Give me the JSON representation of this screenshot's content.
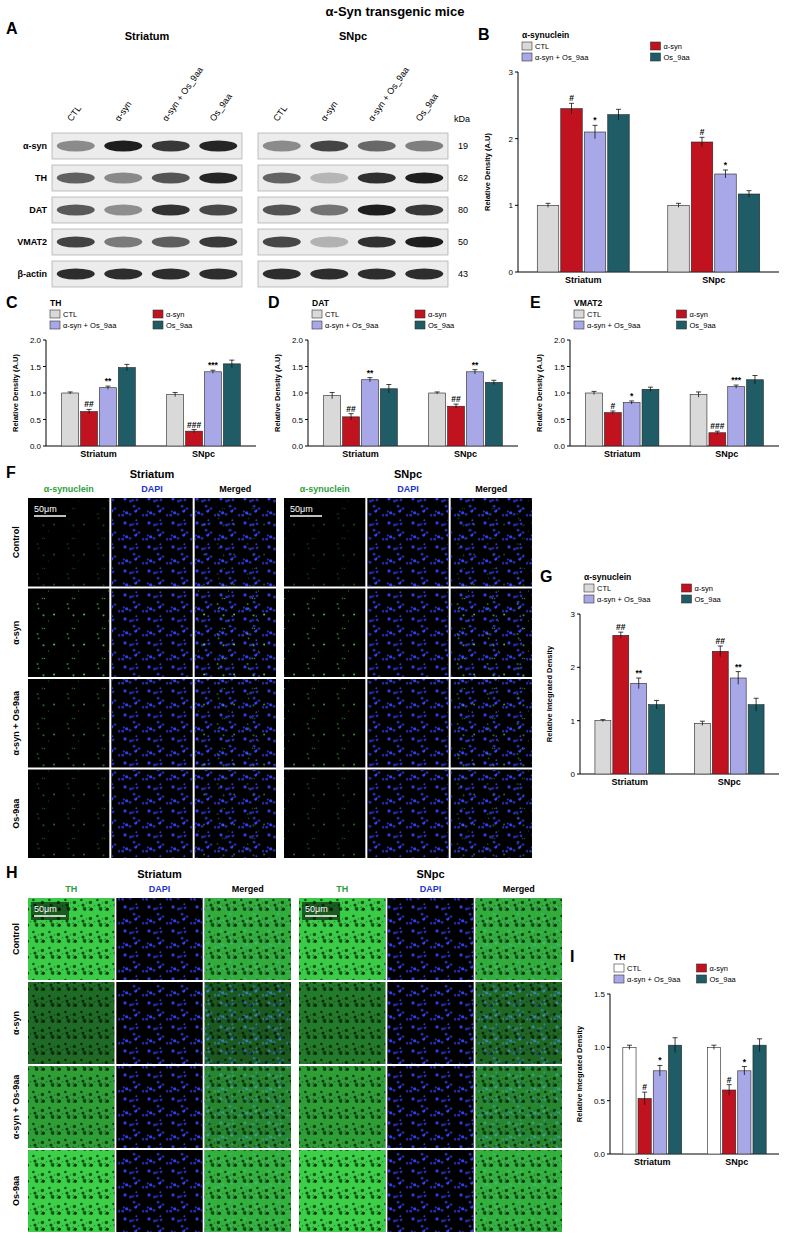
{
  "title": "α-Syn transgenic mice",
  "blot": {
    "panel": "A",
    "regions": [
      "Striatum",
      "SNpc"
    ],
    "lanes": [
      "CTL",
      "α-syn",
      "α-syn + Os_9aa",
      "Os_9aa"
    ],
    "kda_label": "kDa",
    "rows": [
      {
        "label": "α-syn",
        "kda": 19
      },
      {
        "label": "TH",
        "kda": 62
      },
      {
        "label": "DAT",
        "kda": 80
      },
      {
        "label": "VMAT2",
        "kda": 50
      },
      {
        "label": "β-actin",
        "kda": 43
      }
    ]
  },
  "images": [
    {
      "panel": "F",
      "regions": [
        "Striatum",
        "SNpc"
      ],
      "channels": [
        "α-synuclein",
        "DAPI",
        "Merged"
      ],
      "rows": [
        "Control",
        "α-syn",
        "α-syn + Os-9aa",
        "Os-9aa"
      ],
      "scale_bar": "50μm"
    },
    {
      "panel": "H",
      "regions": [
        "Striatum",
        "SNpc"
      ],
      "channels": [
        "TH",
        "DAPI",
        "Merged"
      ],
      "rows": [
        "Control",
        "α-syn",
        "α-syn + Os-9aa",
        "Os-9aa"
      ],
      "scale_bar": "50μm"
    }
  ],
  "chart_data": [
    {
      "panel": "B",
      "type": "bar",
      "title": "α-synuclein",
      "y_label": "Relative Density (A.U)",
      "categories": [
        "Striatum",
        "SNpc"
      ],
      "ylim": [
        0,
        3
      ],
      "yticks": [
        0,
        1,
        2,
        3
      ],
      "legend": "top",
      "series": [
        {
          "name": "CTL",
          "color": "#d9d9d9",
          "values": [
            1.0,
            1.0
          ],
          "errors": [
            0.03,
            0.03
          ]
        },
        {
          "name": "α-syn",
          "color": "#c1121f",
          "values": [
            2.45,
            1.95
          ],
          "errors": [
            0.08,
            0.07
          ],
          "sig": [
            "#",
            "#"
          ]
        },
        {
          "name": "α-syn + Os_9aa",
          "color": "#a8a8e8",
          "values": [
            2.1,
            1.47
          ],
          "errors": [
            0.1,
            0.06
          ],
          "sig": [
            "*",
            "*"
          ]
        },
        {
          "name": "Os_9aa",
          "color": "#1f5c66",
          "values": [
            2.36,
            1.17
          ],
          "errors": [
            0.08,
            0.05
          ]
        }
      ]
    },
    {
      "panel": "C",
      "type": "bar",
      "title": "TH",
      "y_label": "Relative Density (A.U)",
      "categories": [
        "Striatum",
        "SNpc"
      ],
      "ylim": [
        0,
        2
      ],
      "yticks": [
        {
          "value": 0,
          "label": "0.0"
        },
        {
          "value": 0.5,
          "label": "0.5"
        },
        {
          "value": 1,
          "label": "1.0"
        },
        {
          "value": 1.5,
          "label": "1.5"
        },
        {
          "value": 2,
          "label": "2.0"
        }
      ],
      "legend": "top",
      "series": [
        {
          "name": "CTL",
          "color": "#d9d9d9",
          "values": [
            1.0,
            0.97
          ],
          "errors": [
            0.02,
            0.04
          ]
        },
        {
          "name": "α-syn",
          "color": "#c1121f",
          "values": [
            0.65,
            0.28
          ],
          "errors": [
            0.04,
            0.03
          ],
          "sig": [
            "##",
            "###"
          ]
        },
        {
          "name": "α-syn + Os_9aa",
          "color": "#a8a8e8",
          "values": [
            1.1,
            1.4
          ],
          "errors": [
            0.03,
            0.03
          ],
          "sig": [
            "**",
            "***"
          ]
        },
        {
          "name": "Os_9aa",
          "color": "#1f5c66",
          "values": [
            1.48,
            1.55
          ],
          "errors": [
            0.06,
            0.07
          ]
        }
      ]
    },
    {
      "panel": "D",
      "type": "bar",
      "title": "DAT",
      "y_label": "Relative Density (A.U)",
      "categories": [
        "Striatum",
        "SNpc"
      ],
      "ylim": [
        0,
        2
      ],
      "yticks": [
        {
          "value": 0,
          "label": "0.0"
        },
        {
          "value": 0.5,
          "label": "0.5"
        },
        {
          "value": 1,
          "label": "1.0"
        },
        {
          "value": 1.5,
          "label": "1.5"
        },
        {
          "value": 2,
          "label": "2.0"
        }
      ],
      "legend": "top",
      "series": [
        {
          "name": "CTL",
          "color": "#d9d9d9",
          "values": [
            0.95,
            1.0
          ],
          "errors": [
            0.06,
            0.02
          ]
        },
        {
          "name": "α-syn",
          "color": "#c1121f",
          "values": [
            0.55,
            0.75
          ],
          "errors": [
            0.06,
            0.04
          ],
          "sig": [
            "##",
            "##"
          ]
        },
        {
          "name": "α-syn + Os_9aa",
          "color": "#a8a8e8",
          "values": [
            1.25,
            1.4
          ],
          "errors": [
            0.04,
            0.04
          ],
          "sig": [
            "**",
            "**"
          ]
        },
        {
          "name": "Os_9aa",
          "color": "#1f5c66",
          "values": [
            1.08,
            1.2
          ],
          "errors": [
            0.08,
            0.04
          ]
        }
      ]
    },
    {
      "panel": "E",
      "type": "bar",
      "title": "VMAT2",
      "y_label": "Relative Density (A.U)",
      "categories": [
        "Striatum",
        "SNpc"
      ],
      "ylim": [
        0,
        2
      ],
      "yticks": [
        {
          "value": 0,
          "label": "0.0"
        },
        {
          "value": 0.5,
          "label": "0.5"
        },
        {
          "value": 1,
          "label": "1.0"
        },
        {
          "value": 1.5,
          "label": "1.5"
        },
        {
          "value": 2,
          "label": "2.0"
        }
      ],
      "legend": "top",
      "series": [
        {
          "name": "CTL",
          "color": "#d9d9d9",
          "values": [
            1.0,
            0.97
          ],
          "errors": [
            0.03,
            0.05
          ]
        },
        {
          "name": "α-syn",
          "color": "#c1121f",
          "values": [
            0.63,
            0.25
          ],
          "errors": [
            0.03,
            0.03
          ],
          "sig": [
            "#",
            "###"
          ]
        },
        {
          "name": "α-syn + Os_9aa",
          "color": "#a8a8e8",
          "values": [
            0.82,
            1.12
          ],
          "errors": [
            0.03,
            0.03
          ],
          "sig": [
            "*",
            "***"
          ]
        },
        {
          "name": "Os_9aa",
          "color": "#1f5c66",
          "values": [
            1.07,
            1.25
          ],
          "errors": [
            0.04,
            0.08
          ]
        }
      ]
    },
    {
      "panel": "G",
      "type": "bar",
      "title": "α-synuclein",
      "y_label": "Relative Integrated Density",
      "categories": [
        "Striatum",
        "SNpc"
      ],
      "ylim": [
        0,
        3
      ],
      "yticks": [
        0,
        1,
        2,
        3
      ],
      "legend": "top",
      "series": [
        {
          "name": "CTL",
          "color": "#d9d9d9",
          "values": [
            1.0,
            0.95
          ],
          "errors": [
            0.02,
            0.04
          ]
        },
        {
          "name": "α-syn",
          "color": "#c1121f",
          "values": [
            2.6,
            2.3
          ],
          "errors": [
            0.06,
            0.1
          ],
          "sig": [
            "##",
            "##"
          ]
        },
        {
          "name": "α-syn + Os_9aa",
          "color": "#a8a8e8",
          "values": [
            1.7,
            1.8
          ],
          "errors": [
            0.1,
            0.12
          ],
          "sig": [
            "**",
            "**"
          ]
        },
        {
          "name": "Os_9aa",
          "color": "#1f5c66",
          "values": [
            1.3,
            1.3
          ],
          "errors": [
            0.08,
            0.12
          ]
        }
      ]
    },
    {
      "panel": "I",
      "type": "bar",
      "title": "TH",
      "y_label": "Relative Integrated Density",
      "categories": [
        "Striatum",
        "SNpc"
      ],
      "ylim": [
        0,
        1.5
      ],
      "yticks": [
        {
          "value": 0,
          "label": "0.0"
        },
        {
          "value": 0.5,
          "label": "0.5"
        },
        {
          "value": 1,
          "label": "1.0"
        },
        {
          "value": 1.5,
          "label": "1.5"
        }
      ],
      "legend": "top",
      "series": [
        {
          "name": "CTL",
          "color": "#ffffff",
          "values": [
            1.0,
            1.0
          ],
          "errors": [
            0.02,
            0.02
          ]
        },
        {
          "name": "α-syn",
          "color": "#c1121f",
          "values": [
            0.52,
            0.6
          ],
          "errors": [
            0.06,
            0.05
          ],
          "sig": [
            "#",
            "#"
          ]
        },
        {
          "name": "α-syn + Os_9aa",
          "color": "#a8a8e8",
          "values": [
            0.78,
            0.78
          ],
          "errors": [
            0.05,
            0.04
          ],
          "sig": [
            "*",
            "*"
          ]
        },
        {
          "name": "Os_9aa",
          "color": "#1f5c66",
          "values": [
            1.02,
            1.02
          ],
          "errors": [
            0.07,
            0.06
          ]
        }
      ]
    }
  ]
}
